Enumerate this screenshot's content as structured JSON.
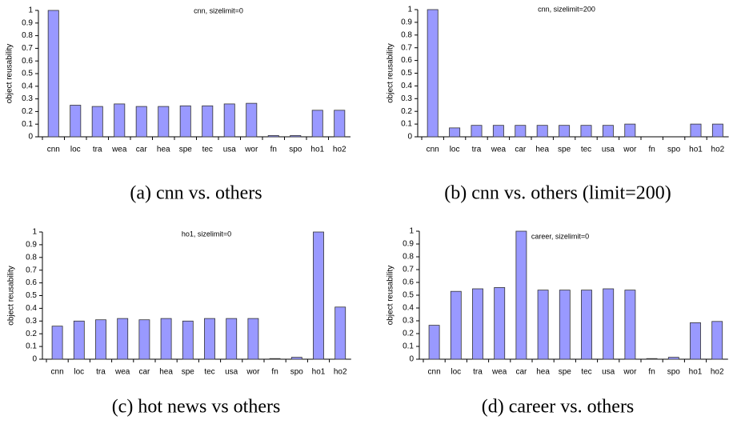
{
  "chart_data": [
    {
      "type": "bar",
      "title": "cnn, sizelimit=0",
      "ylabel": "object reusability",
      "caption": "(a) cnn vs. others",
      "categories": [
        "cnn",
        "loc",
        "tra",
        "wea",
        "car",
        "hea",
        "spe",
        "tec",
        "usa",
        "wor",
        "fn",
        "spo",
        "ho1",
        "ho2"
      ],
      "values": [
        1,
        0.25,
        0.24,
        0.26,
        0.24,
        0.24,
        0.245,
        0.245,
        0.26,
        0.265,
        0.01,
        0.01,
        0.21,
        0.21
      ],
      "color": "#9999ff",
      "ylim": [
        0,
        1
      ],
      "yticks": [
        0,
        0.1,
        0.2,
        0.3,
        0.4,
        0.5,
        0.6,
        0.7,
        0.8,
        0.9,
        1
      ]
    },
    {
      "type": "bar",
      "title": "cnn, sizelimit=200",
      "ylabel": "object reusability",
      "caption": "(b) cnn vs. others (limit=200)",
      "categories": [
        "cnn",
        "loc",
        "tra",
        "wea",
        "car",
        "hea",
        "spe",
        "tec",
        "usa",
        "wor",
        "fn",
        "spo",
        "ho1",
        "ho2"
      ],
      "values": [
        1,
        0.07,
        0.09,
        0.09,
        0.09,
        0.09,
        0.09,
        0.09,
        0.09,
        0.1,
        0,
        0,
        0.1,
        0.1
      ],
      "color": "#9999ff",
      "ylim": [
        0,
        1
      ],
      "yticks": [
        0,
        0.1,
        0.2,
        0.3,
        0.4,
        0.5,
        0.6,
        0.7,
        0.8,
        0.9,
        1
      ]
    },
    {
      "type": "bar",
      "title": "ho1, sizelimit=0",
      "ylabel": "object reusability",
      "caption": "(c) hot news vs others",
      "categories": [
        "cnn",
        "loc",
        "tra",
        "wea",
        "car",
        "hea",
        "spe",
        "tec",
        "usa",
        "wor",
        "fn",
        "spo",
        "ho1",
        "ho2"
      ],
      "values": [
        0.26,
        0.3,
        0.31,
        0.32,
        0.31,
        0.32,
        0.3,
        0.32,
        0.32,
        0.32,
        0.005,
        0.015,
        1,
        0.41
      ],
      "color": "#9999ff",
      "ylim": [
        0,
        1
      ],
      "yticks": [
        0,
        0.1,
        0.2,
        0.3,
        0.4,
        0.5,
        0.6,
        0.7,
        0.8,
        0.9,
        1
      ]
    },
    {
      "type": "bar",
      "title": "career, sizelimit=0",
      "ylabel": "object reusability",
      "caption": "(d) career vs. others",
      "categories": [
        "cnn",
        "loc",
        "tra",
        "wea",
        "car",
        "hea",
        "spe",
        "tec",
        "usa",
        "wor",
        "fn",
        "spo",
        "ho1",
        "ho2"
      ],
      "values": [
        0.265,
        0.53,
        0.55,
        0.56,
        1,
        0.54,
        0.54,
        0.54,
        0.55,
        0.54,
        0.005,
        0.015,
        0.285,
        0.295
      ],
      "color": "#9999ff",
      "ylim": [
        0,
        1
      ],
      "yticks": [
        0,
        0.1,
        0.2,
        0.3,
        0.4,
        0.5,
        0.6,
        0.7,
        0.8,
        0.9,
        1
      ]
    }
  ]
}
